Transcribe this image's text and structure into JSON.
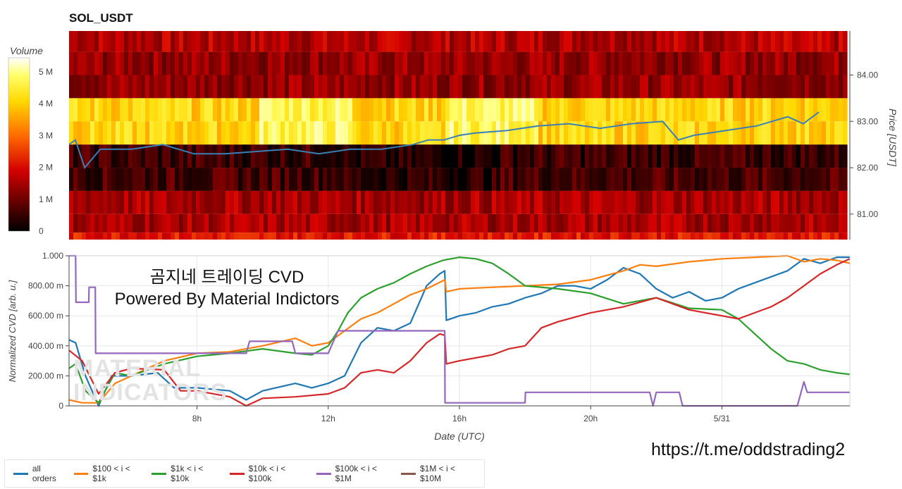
{
  "title": "SOL_USDT",
  "colorbar": {
    "label": "Volume",
    "ticks": [
      "5 M",
      "4 M",
      "3 M",
      "2 M",
      "1 M",
      "0"
    ]
  },
  "heatmap": {
    "ylabel": "Price [USDT]",
    "yticks": [
      "84.00",
      "83.00",
      "82.00",
      "81.00"
    ],
    "ylim": [
      80.45,
      84.95
    ],
    "bands": [
      {
        "from": 84.5,
        "to": 84.95,
        "level": 0.3
      },
      {
        "from": 84.0,
        "to": 84.5,
        "level": 0.25
      },
      {
        "from": 83.5,
        "to": 84.0,
        "level": 0.25
      },
      {
        "from": 83.0,
        "to": 83.5,
        "level": 0.75
      },
      {
        "from": 82.5,
        "to": 83.0,
        "level": 0.75
      },
      {
        "from": 82.0,
        "to": 82.5,
        "level": 0.1
      },
      {
        "from": 81.5,
        "to": 82.0,
        "level": 0.12
      },
      {
        "from": 81.0,
        "to": 81.5,
        "level": 0.28
      },
      {
        "from": 80.6,
        "to": 81.0,
        "level": 0.28
      },
      {
        "from": 80.45,
        "to": 80.6,
        "level": 0.4
      }
    ]
  },
  "overlay_text": {
    "line1": "곰지네 트레이딩 CVD",
    "line2": "Powered By Material Indictors"
  },
  "url": "https://t.me/oddstrading2",
  "watermark": {
    "line1": "MATERIAL",
    "line2": "INDICATORS"
  },
  "chart_data": [
    {
      "type": "line",
      "title": "SOL_USDT",
      "ylabel": "Price [USDT]",
      "ylim": [
        80.45,
        84.95
      ],
      "x_hours": [
        3,
        3.2,
        3.5,
        4,
        5,
        6,
        7,
        8,
        9,
        10,
        11,
        12,
        13,
        14,
        14.5,
        15,
        15.5,
        16,
        17,
        18,
        19,
        20,
        21,
        22,
        22.5,
        23,
        24,
        25,
        26,
        26.5,
        27
      ],
      "values": [
        82.5,
        82.6,
        82.0,
        82.4,
        82.4,
        82.5,
        82.3,
        82.3,
        82.35,
        82.4,
        82.3,
        82.4,
        82.4,
        82.5,
        82.6,
        82.6,
        82.7,
        82.75,
        82.8,
        82.9,
        82.95,
        82.85,
        82.95,
        83.0,
        82.6,
        82.7,
        82.8,
        82.9,
        83.1,
        82.95,
        83.2
      ]
    },
    {
      "type": "line",
      "xlabel": "Date (UTC)",
      "ylabel": "Normalized CVD [arb. u.]",
      "ylim": [
        0,
        1
      ],
      "xlim_hours": [
        4.1,
        27.9
      ],
      "x_ticks": [
        {
          "hour": 8,
          "label": "8h"
        },
        {
          "hour": 12,
          "label": "12h"
        },
        {
          "hour": 16,
          "label": "16h"
        },
        {
          "hour": 20,
          "label": "20h"
        },
        {
          "hour": 24,
          "label": "5/31"
        }
      ],
      "y_ticks": [
        {
          "value": 0,
          "label": "0"
        },
        {
          "value": 0.2,
          "label": "200.00 m"
        },
        {
          "value": 0.4,
          "label": "400.00 m"
        },
        {
          "value": 0.6,
          "label": "600.00 m"
        },
        {
          "value": 0.8,
          "label": "800.00 m"
        },
        {
          "value": 1.0,
          "label": "1.000"
        }
      ],
      "series": [
        {
          "name": "all orders",
          "color": "#1f77b4",
          "x": [
            4.1,
            4.3,
            4.6,
            5.0,
            5.4,
            6.0,
            6.8,
            7.3,
            8.0,
            9.0,
            9.5,
            10.0,
            11.0,
            11.5,
            12.0,
            12.5,
            13.0,
            13.5,
            14.0,
            14.5,
            15.0,
            15.4,
            15.55,
            15.6,
            16.0,
            16.5,
            17.0,
            17.5,
            18.0,
            18.5,
            19.0,
            19.5,
            20.0,
            20.5,
            21.0,
            21.5,
            22.0,
            22.5,
            23.0,
            23.5,
            24.0,
            24.5,
            25.0,
            25.5,
            26.0,
            26.5,
            27.0,
            27.5,
            27.9
          ],
          "values": [
            0.44,
            0.42,
            0.2,
            0.0,
            0.2,
            0.2,
            0.22,
            0.12,
            0.12,
            0.1,
            0.04,
            0.1,
            0.15,
            0.12,
            0.15,
            0.2,
            0.42,
            0.52,
            0.5,
            0.55,
            0.8,
            0.88,
            0.9,
            0.57,
            0.6,
            0.62,
            0.66,
            0.68,
            0.72,
            0.75,
            0.8,
            0.8,
            0.78,
            0.84,
            0.92,
            0.88,
            0.78,
            0.72,
            0.76,
            0.7,
            0.72,
            0.78,
            0.82,
            0.86,
            0.9,
            0.98,
            0.95,
            0.99,
            0.99
          ]
        },
        {
          "name": "$100 < i < $1k",
          "color": "#ff7f0e",
          "x": [
            4.1,
            4.5,
            5.0,
            5.5,
            6.0,
            7.0,
            8.0,
            9.0,
            10.0,
            11.0,
            11.5,
            12.0,
            12.5,
            13.0,
            13.5,
            14.0,
            14.5,
            15.0,
            15.55,
            15.6,
            16.0,
            17.0,
            18.0,
            19.0,
            20.0,
            21.0,
            21.5,
            22.0,
            23.0,
            24.0,
            25.0,
            26.0,
            26.5,
            27.0,
            27.5,
            27.9
          ],
          "values": [
            0.04,
            0.02,
            0.02,
            0.15,
            0.2,
            0.3,
            0.35,
            0.36,
            0.4,
            0.45,
            0.4,
            0.42,
            0.5,
            0.58,
            0.62,
            0.68,
            0.74,
            0.78,
            0.84,
            0.76,
            0.78,
            0.79,
            0.8,
            0.81,
            0.84,
            0.9,
            0.94,
            0.93,
            0.96,
            0.98,
            0.99,
            1.0,
            0.96,
            0.98,
            0.97,
            0.95
          ]
        },
        {
          "name": "$1k < i < $10k",
          "color": "#2ca02c",
          "x": [
            4.1,
            4.3,
            4.6,
            5.0,
            5.5,
            6.0,
            7.0,
            8.0,
            9.0,
            10.0,
            11.0,
            11.5,
            12.0,
            12.3,
            12.6,
            13.0,
            13.5,
            14.0,
            14.5,
            15.0,
            15.5,
            16.0,
            16.5,
            17.0,
            17.5,
            18.0,
            19.0,
            20.0,
            21.0,
            22.0,
            23.0,
            24.0,
            24.5,
            25.0,
            25.5,
            26.0,
            26.5,
            27.0,
            27.5,
            27.9
          ],
          "values": [
            0.25,
            0.28,
            0.1,
            0.02,
            0.22,
            0.2,
            0.28,
            0.33,
            0.35,
            0.38,
            0.35,
            0.34,
            0.4,
            0.5,
            0.62,
            0.72,
            0.78,
            0.82,
            0.88,
            0.93,
            0.97,
            0.99,
            0.98,
            0.95,
            0.88,
            0.8,
            0.78,
            0.75,
            0.68,
            0.72,
            0.65,
            0.64,
            0.58,
            0.48,
            0.38,
            0.3,
            0.28,
            0.24,
            0.22,
            0.21
          ]
        },
        {
          "name": "$10k < i < $100k",
          "color": "#d62728",
          "x": [
            4.1,
            4.5,
            5.0,
            5.5,
            6.0,
            7.0,
            7.5,
            8.0,
            9.0,
            9.5,
            10.0,
            11.0,
            12.0,
            12.5,
            13.0,
            13.5,
            14.0,
            14.5,
            15.0,
            15.4,
            15.55,
            15.6,
            16.0,
            17.0,
            17.5,
            18.0,
            18.5,
            19.0,
            20.0,
            21.0,
            22.0,
            23.0,
            24.0,
            24.5,
            25.0,
            25.5,
            26.0,
            26.5,
            27.0,
            27.5,
            27.9
          ],
          "values": [
            0.37,
            0.3,
            0.08,
            0.22,
            0.25,
            0.24,
            0.1,
            0.1,
            0.06,
            0.0,
            0.05,
            0.06,
            0.08,
            0.12,
            0.22,
            0.24,
            0.22,
            0.3,
            0.42,
            0.48,
            0.47,
            0.28,
            0.3,
            0.34,
            0.38,
            0.4,
            0.52,
            0.56,
            0.62,
            0.66,
            0.72,
            0.64,
            0.6,
            0.58,
            0.62,
            0.66,
            0.72,
            0.8,
            0.88,
            0.94,
            0.98
          ]
        },
        {
          "name": "$100k < i < $1M",
          "color": "#9467bd",
          "x": [
            4.1,
            4.3,
            4.31,
            4.7,
            4.71,
            4.9,
            4.91,
            8.0,
            9.0,
            9.5,
            9.6,
            10.9,
            11.0,
            11.8,
            12.0,
            12.3,
            12.31,
            15.55,
            15.56,
            18.0,
            18.01,
            21.8,
            21.9,
            22.0,
            22.7,
            22.8,
            23.2,
            26.3,
            26.5,
            26.6,
            27.9
          ],
          "values": [
            1.0,
            1.0,
            0.69,
            0.69,
            0.79,
            0.79,
            0.35,
            0.35,
            0.35,
            0.35,
            0.43,
            0.43,
            0.35,
            0.35,
            0.35,
            0.5,
            0.5,
            0.5,
            0.02,
            0.02,
            0.09,
            0.09,
            0.0,
            0.09,
            0.09,
            0.0,
            0.0,
            0.0,
            0.16,
            0.09,
            0.09
          ]
        },
        {
          "name": "$1M < i < $10M",
          "color": "#8c564b",
          "x": [],
          "values": []
        }
      ]
    }
  ]
}
